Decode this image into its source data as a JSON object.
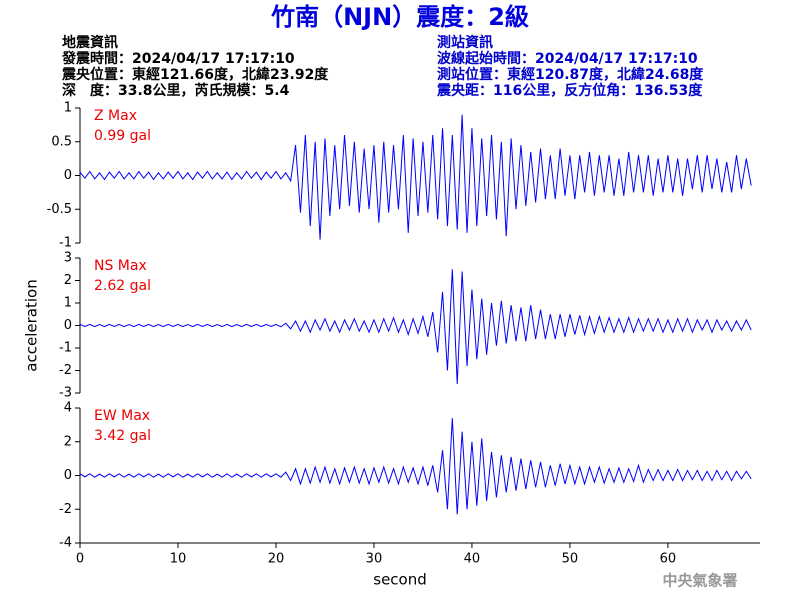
{
  "header": {
    "title": "竹南（NJN）震度：2級",
    "left": [
      "地震資訊",
      "發震時間：2024/04/17 17:17:10",
      "震央位置：東經121.66度，北緯23.92度",
      "深　度：33.8公里，芮氏規模：5.4"
    ],
    "right": [
      "測站資訊",
      "波線起始時間：2024/04/17 17:17:10",
      "測站位置：東經120.87度，北緯24.68度",
      "震央距：116公里，反方位角：136.53度"
    ],
    "watermark": "中央氣象署"
  },
  "chart_data": [
    {
      "type": "line",
      "annotations": [
        "Z Max",
        "0.99 gal"
      ],
      "color": "#0000ff",
      "ylim": [
        -1,
        1
      ],
      "yticks": [
        -1,
        -0.5,
        0,
        0.5,
        1
      ],
      "values": [
        0.05,
        -0.04,
        0.06,
        -0.05,
        0.04,
        -0.06,
        0.05,
        -0.04,
        0.06,
        -0.05,
        0.04,
        -0.05,
        0.06,
        -0.04,
        0.05,
        -0.06,
        0.04,
        -0.05,
        0.05,
        -0.04,
        0.06,
        -0.05,
        0.04,
        -0.06,
        0.05,
        -0.04,
        0.06,
        -0.05,
        0.04,
        -0.05,
        0.05,
        -0.06,
        0.04,
        -0.05,
        0.06,
        -0.04,
        0.05,
        -0.06,
        0.05,
        -0.04,
        0.06,
        -0.05,
        0.04,
        -0.08,
        0.45,
        -0.55,
        0.6,
        -0.75,
        0.5,
        -0.95,
        0.55,
        -0.6,
        0.45,
        -0.5,
        0.6,
        -0.45,
        0.5,
        -0.55,
        0.4,
        -0.5,
        0.45,
        -0.7,
        0.5,
        -0.55,
        0.45,
        -0.5,
        0.6,
        -0.85,
        0.55,
        -0.6,
        0.5,
        -0.55,
        0.6,
        -0.65,
        0.7,
        -0.75,
        0.6,
        -0.8,
        0.9,
        -0.85,
        0.7,
        -0.75,
        0.55,
        -0.6,
        0.6,
        -0.65,
        0.5,
        -0.9,
        0.55,
        -0.5,
        0.45,
        -0.45,
        0.35,
        -0.4,
        0.4,
        -0.35,
        0.3,
        -0.35,
        0.4,
        -0.3,
        0.3,
        -0.35,
        0.3,
        -0.25,
        0.35,
        -0.3,
        0.3,
        -0.25,
        0.3,
        -0.3,
        0.25,
        -0.3,
        0.35,
        -0.25,
        0.3,
        -0.25,
        0.3,
        -0.3,
        0.25,
        -0.25,
        0.3,
        -0.25,
        0.25,
        -0.3,
        0.25,
        -0.2,
        0.3,
        -0.25,
        0.3,
        -0.2,
        0.25,
        -0.25,
        0.2,
        -0.25,
        0.3,
        -0.2,
        0.25,
        -0.15
      ]
    },
    {
      "type": "line",
      "annotations": [
        "NS Max",
        "2.62 gal"
      ],
      "color": "#0000ff",
      "ylim": [
        -3,
        3
      ],
      "yticks": [
        -3,
        -2,
        -1,
        0,
        1,
        2,
        3
      ],
      "ylabel": "acceleration",
      "values": [
        0.05,
        -0.04,
        0.05,
        -0.05,
        0.04,
        -0.05,
        0.05,
        -0.04,
        0.05,
        -0.05,
        0.04,
        -0.05,
        0.05,
        -0.04,
        0.05,
        -0.05,
        0.04,
        -0.05,
        0.05,
        -0.04,
        0.05,
        -0.05,
        0.04,
        -0.05,
        0.05,
        -0.04,
        0.05,
        -0.05,
        0.04,
        -0.05,
        0.05,
        -0.05,
        0.04,
        -0.05,
        0.05,
        -0.04,
        0.05,
        -0.05,
        0.05,
        -0.04,
        0.05,
        -0.06,
        0.1,
        -0.15,
        0.2,
        -0.25,
        0.2,
        -0.3,
        0.25,
        -0.2,
        0.3,
        -0.25,
        0.2,
        -0.3,
        0.25,
        -0.2,
        0.3,
        -0.25,
        0.2,
        -0.3,
        0.25,
        -0.3,
        0.3,
        -0.25,
        0.35,
        -0.3,
        0.25,
        -0.4,
        0.3,
        -0.35,
        0.4,
        -0.5,
        0.6,
        -1.2,
        1.5,
        -2.0,
        2.5,
        -2.6,
        2.4,
        -1.8,
        1.6,
        -1.5,
        1.2,
        -1.3,
        1.0,
        -0.9,
        1.1,
        -0.8,
        0.9,
        -0.7,
        0.8,
        -0.7,
        0.9,
        -0.6,
        0.7,
        -0.6,
        0.5,
        -0.6,
        0.5,
        -0.5,
        0.5,
        -0.4,
        0.45,
        -0.4,
        0.4,
        -0.35,
        0.4,
        -0.3,
        0.35,
        -0.3,
        0.3,
        -0.3,
        0.35,
        -0.3,
        0.3,
        -0.25,
        0.3,
        -0.25,
        0.3,
        -0.3,
        0.25,
        -0.3,
        0.3,
        -0.25,
        0.3,
        -0.3,
        0.25,
        -0.2,
        0.25,
        -0.3,
        0.25,
        -0.2,
        0.2,
        -0.25,
        0.2,
        -0.2,
        0.25,
        -0.2
      ]
    },
    {
      "type": "line",
      "annotations": [
        "EW Max",
        "3.42 gal"
      ],
      "color": "#0000ff",
      "ylim": [
        -4,
        4
      ],
      "yticks": [
        -4,
        -2,
        0,
        2,
        4
      ],
      "xlabel": "second",
      "xlim": [
        0,
        69.4
      ],
      "xticks": [
        0,
        10,
        20,
        30,
        40,
        50,
        60
      ],
      "x": [
        0,
        0.5,
        1,
        1.5,
        2,
        2.5,
        3,
        3.5,
        4,
        4.5,
        5,
        5.5,
        6,
        6.5,
        7,
        7.5,
        8,
        8.5,
        9,
        9.5,
        10,
        10.5,
        11,
        11.5,
        12,
        12.5,
        13,
        13.5,
        14,
        14.5,
        15,
        15.5,
        16,
        16.5,
        17,
        17.5,
        18,
        18.5,
        19,
        19.5,
        20,
        20.5,
        21,
        21.5,
        22,
        22.5,
        23,
        23.5,
        24,
        24.5,
        25,
        25.5,
        26,
        26.5,
        27,
        27.5,
        28,
        28.5,
        29,
        29.5,
        30,
        30.5,
        31,
        31.5,
        32,
        32.5,
        33,
        33.5,
        34,
        34.5,
        35,
        35.5,
        36,
        36.5,
        37,
        37.5,
        38,
        38.5,
        39,
        39.5,
        40,
        40.5,
        41,
        41.5,
        42,
        42.5,
        43,
        43.5,
        44,
        44.5,
        45,
        45.5,
        46,
        46.5,
        47,
        47.5,
        48,
        48.5,
        49,
        49.5,
        50,
        50.5,
        51,
        51.5,
        52,
        52.5,
        53,
        53.5,
        54,
        54.5,
        55,
        55.5,
        56,
        56.5,
        57,
        57.5,
        58,
        58.5,
        59,
        59.5,
        60,
        60.5,
        61,
        61.5,
        62,
        62.5,
        63,
        63.5,
        64,
        64.5,
        65,
        65.5,
        66,
        66.5,
        67,
        67.5,
        68,
        68.5
      ],
      "values": [
        0.1,
        -0.08,
        0.1,
        -0.1,
        0.08,
        -0.1,
        0.1,
        -0.08,
        0.1,
        -0.1,
        0.08,
        -0.1,
        0.1,
        -0.08,
        0.1,
        -0.1,
        0.08,
        -0.1,
        0.1,
        -0.08,
        0.1,
        -0.1,
        0.08,
        -0.1,
        0.1,
        -0.08,
        0.1,
        -0.1,
        0.08,
        -0.1,
        0.1,
        -0.1,
        0.08,
        -0.1,
        0.1,
        -0.08,
        0.1,
        -0.1,
        0.1,
        -0.08,
        0.1,
        -0.1,
        0.2,
        -0.3,
        0.4,
        -0.5,
        0.4,
        -0.45,
        0.5,
        -0.4,
        0.5,
        -0.45,
        0.4,
        -0.5,
        0.45,
        -0.4,
        0.5,
        -0.45,
        0.4,
        -0.5,
        0.45,
        -0.4,
        0.5,
        -0.45,
        0.4,
        -0.5,
        0.5,
        -0.4,
        0.45,
        -0.5,
        0.5,
        -0.6,
        0.6,
        -1.0,
        1.5,
        -2.0,
        3.4,
        -2.3,
        2.6,
        -2.0,
        2.0,
        -1.8,
        2.2,
        -1.5,
        1.4,
        -1.3,
        1.2,
        -1.0,
        1.1,
        -0.9,
        1.0,
        -0.8,
        0.9,
        -0.7,
        0.8,
        -0.7,
        0.6,
        -0.6,
        0.7,
        -0.5,
        0.6,
        -0.5,
        0.5,
        -0.5,
        0.5,
        -0.4,
        0.5,
        -0.45,
        0.4,
        -0.4,
        0.45,
        -0.4,
        0.4,
        -0.35,
        0.6,
        -0.4,
        0.35,
        -0.3,
        0.35,
        -0.3,
        0.3,
        -0.3,
        0.35,
        -0.3,
        0.3,
        -0.25,
        0.3,
        -0.3,
        0.25,
        -0.3,
        0.3,
        -0.25,
        0.25,
        -0.3,
        0.25,
        -0.2,
        0.25,
        -0.2
      ]
    }
  ]
}
